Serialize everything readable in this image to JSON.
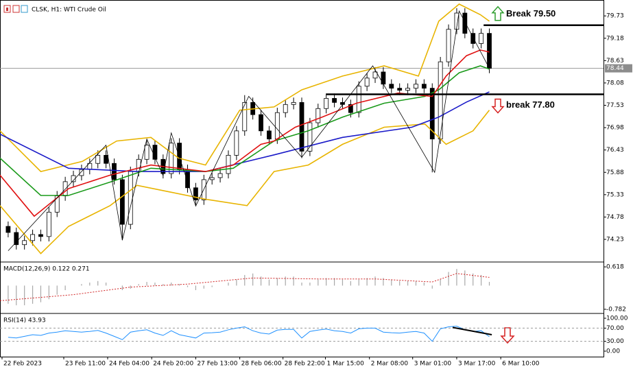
{
  "chart_data": [
    {
      "type": "candlestick",
      "title": "CLSK, H1:  WTI Crude Oil",
      "open": [
        74.55,
        74.4,
        74.1,
        74.2,
        74.35,
        74.3,
        74.9,
        75.3,
        75.65,
        75.8,
        75.95,
        76.1,
        76.3,
        76.1,
        75.7,
        74.6,
        75.9,
        76.2,
        76.55,
        76.2,
        75.85,
        76.6,
        75.95,
        75.5,
        75.2,
        75.7,
        75.75,
        75.85,
        76.3,
        76.9,
        77.6,
        77.3,
        76.9,
        76.7,
        77.35,
        77.55,
        77.6,
        76.4,
        77.1,
        77.45,
        77.7,
        77.6,
        77.55,
        77.35,
        78.0,
        78.2,
        78.35,
        78.05,
        77.95,
        77.9,
        77.95,
        78.05,
        77.95,
        76.7,
        78.6,
        79.4,
        79.8,
        79.3,
        79.05,
        79.3
      ],
      "high": [
        74.67,
        74.52,
        74.32,
        74.47,
        74.47,
        75.02,
        75.42,
        75.77,
        75.92,
        76.07,
        76.22,
        76.42,
        76.42,
        76.22,
        75.82,
        76.02,
        76.32,
        76.67,
        76.67,
        76.32,
        76.72,
        76.72,
        76.07,
        75.62,
        75.82,
        75.87,
        75.97,
        76.42,
        77.02,
        77.78,
        77.72,
        77.42,
        77.02,
        77.47,
        77.67,
        77.72,
        77.72,
        77.22,
        77.57,
        77.82,
        77.82,
        77.72,
        77.67,
        78.12,
        78.32,
        78.47,
        78.47,
        78.17,
        78.07,
        78.07,
        78.17,
        78.17,
        78.07,
        78.72,
        79.52,
        79.92,
        79.92,
        79.42,
        79.42,
        79.42
      ],
      "low": [
        74.28,
        73.98,
        73.98,
        74.08,
        74.18,
        74.18,
        74.78,
        75.18,
        75.53,
        75.68,
        75.83,
        75.98,
        75.98,
        75.58,
        74.21,
        74.48,
        75.78,
        76.08,
        76.08,
        75.73,
        75.73,
        75.83,
        75.38,
        75.08,
        75.08,
        75.58,
        75.63,
        75.73,
        76.18,
        76.78,
        77.18,
        76.78,
        76.58,
        76.58,
        77.23,
        77.43,
        76.23,
        76.28,
        76.98,
        77.33,
        77.48,
        77.43,
        77.23,
        77.23,
        77.88,
        78.08,
        77.93,
        77.83,
        77.78,
        77.78,
        77.83,
        77.83,
        75.88,
        76.58,
        78.48,
        79.28,
        79.18,
        78.93,
        78.93,
        78.32
      ],
      "close": [
        74.4,
        74.1,
        74.2,
        74.35,
        74.3,
        74.9,
        75.3,
        75.65,
        75.8,
        75.95,
        76.1,
        76.3,
        76.1,
        75.7,
        74.6,
        75.9,
        76.2,
        76.55,
        76.2,
        75.85,
        76.6,
        75.95,
        75.5,
        75.2,
        75.7,
        75.75,
        75.85,
        76.3,
        76.9,
        77.6,
        77.3,
        76.9,
        76.7,
        77.35,
        77.55,
        77.6,
        76.4,
        77.1,
        77.45,
        77.7,
        77.6,
        77.55,
        77.35,
        78.0,
        78.2,
        78.35,
        78.05,
        77.95,
        77.9,
        77.95,
        78.05,
        77.95,
        76.7,
        78.6,
        79.4,
        79.8,
        79.3,
        79.05,
        79.3,
        78.44
      ],
      "up_color": "#ffffff",
      "down_color": "#000000",
      "xlim": [
        -1,
        73
      ],
      "xticks": [
        {
          "value": -0.75,
          "label": "22 Feb 2023"
        },
        {
          "value": 6.82,
          "label": "23 Feb 11:00"
        },
        {
          "value": 12.2,
          "label": "24 Feb 04:00"
        },
        {
          "value": 17.6,
          "label": "24 Feb 20:00"
        },
        {
          "value": 23,
          "label": "27 Feb 13:00"
        },
        {
          "value": 28.4,
          "label": "28 Feb 06:00"
        },
        {
          "value": 33.7,
          "label": "28 Feb 22:00"
        },
        {
          "value": 38.9,
          "label": "1 Mar 15:00"
        },
        {
          "value": 44.3,
          "label": "2 Mar 08:00"
        },
        {
          "value": 49.6,
          "label": "3 Mar 01:00"
        },
        {
          "value": 55,
          "label": "3 Mar 17:00"
        },
        {
          "value": 60.4,
          "label": "6 Mar 10:00"
        }
      ],
      "ylim": [
        73.69,
        80.02
      ],
      "yticks": [
        79.73,
        79.18,
        78.63,
        78.08,
        77.53,
        76.98,
        76.43,
        75.88,
        75.33,
        74.78,
        74.23
      ],
      "last_price": 78.44,
      "lines": [
        {
          "color": "#e8b400",
          "x": [
            -1,
            4,
            9.1,
            13.3,
            17.5,
            20.9,
            24.2,
            28.4,
            32.6,
            36,
            41,
            46.1,
            50.3,
            52.8,
            55.3,
            57.9,
            59
          ],
          "values": [
            76.9,
            75.9,
            76.15,
            76.65,
            76.74,
            76.23,
            76.06,
            77.41,
            77.49,
            77.91,
            78.25,
            78.5,
            78.25,
            79.6,
            80.02,
            79.76,
            79.6
          ]
        },
        {
          "color": "#e8b400",
          "x": [
            -1,
            4,
            7.4,
            12.5,
            15.8,
            20,
            24.2,
            29.3,
            32.6,
            36.8,
            41,
            46.1,
            51.1,
            53.7,
            57,
            59
          ],
          "values": [
            75.06,
            73.88,
            74.55,
            75.06,
            75.56,
            75.39,
            75.22,
            75.06,
            75.9,
            76.06,
            76.57,
            76.99,
            77.07,
            76.57,
            76.9,
            77.41
          ]
        },
        {
          "color": "#1a1ac8",
          "x": [
            -1,
            7.4,
            15.8,
            24.2,
            32.6,
            41,
            49.5,
            52.8,
            56.2,
            59
          ],
          "values": [
            76.82,
            75.98,
            75.9,
            75.9,
            76.31,
            76.74,
            76.99,
            77.24,
            77.61,
            77.86
          ]
        },
        {
          "color": "#1a9a1a",
          "x": [
            -1,
            4,
            7.4,
            12.5,
            17.5,
            24.2,
            27.6,
            32.6,
            36.8,
            41,
            46.1,
            51.1,
            52.8,
            55.3,
            57.9,
            59
          ],
          "values": [
            76.23,
            75.31,
            75.31,
            75.64,
            75.98,
            75.9,
            75.98,
            76.65,
            76.9,
            77.24,
            77.58,
            77.75,
            77.91,
            78.33,
            78.5,
            78.42
          ]
        },
        {
          "color": "#e01010",
          "x": [
            -1,
            3.2,
            7.4,
            12.5,
            17.5,
            24.2,
            27.6,
            31,
            32.6,
            35.2,
            38.5,
            42.7,
            47.8,
            52,
            53.7,
            56.2,
            57.9,
            59
          ],
          "values": [
            75.81,
            74.8,
            75.48,
            75.81,
            76.06,
            75.9,
            76.06,
            76.57,
            76.65,
            76.99,
            77.24,
            77.58,
            77.83,
            77.75,
            78.25,
            78.75,
            78.89,
            78.84
          ]
        },
        {
          "color": "#000000",
          "x": [
            0,
            12,
            14,
            17,
            19,
            20,
            23,
            29.5,
            36,
            44.7,
            52.3,
            55.3,
            59
          ],
          "values": [
            73.95,
            76.55,
            74.21,
            76.7,
            75.8,
            76.85,
            75.05,
            77.75,
            76.25,
            78.5,
            75.88,
            79.85,
            78.44
          ]
        }
      ],
      "levels": [
        {
          "value": 79.5,
          "x_start": 58.3,
          "label": "Break 79.50",
          "arrow": "up",
          "arrow_color": "#2e9e2e"
        },
        {
          "value": 77.8,
          "x_start": 39,
          "label": "break 77.80",
          "arrow": "down",
          "arrow_color": "#d62020"
        }
      ]
    },
    {
      "type": "bar",
      "title": "MACD(12,26,9) 0.122 0.271",
      "values": [
        -0.6,
        -0.65,
        -0.65,
        -0.6,
        -0.55,
        -0.45,
        -0.3,
        -0.15,
        0,
        0.05,
        0.1,
        0.15,
        0.1,
        0,
        -0.15,
        -0.1,
        0.05,
        0.12,
        0.1,
        0.05,
        0.1,
        0.05,
        -0.05,
        -0.15,
        -0.1,
        -0.05,
        0,
        0.1,
        0.2,
        0.35,
        0.4,
        0.3,
        0.2,
        0.25,
        0.3,
        0.3,
        0.1,
        0.1,
        0.2,
        0.25,
        0.25,
        0.2,
        0.15,
        0.2,
        0.25,
        0.3,
        0.25,
        0.2,
        0.15,
        0.15,
        0.15,
        0.1,
        -0.1,
        0.2,
        0.45,
        0.55,
        0.5,
        0.4,
        0.35,
        0.122
      ],
      "color": "#a8a8a8",
      "signal": {
        "color": "#d02020",
        "x": [
          -1,
          8,
          15,
          22,
          30,
          38,
          45,
          52,
          55,
          59
        ],
        "values": [
          -0.5,
          -0.3,
          -0.05,
          0.05,
          0.25,
          0.22,
          0.22,
          0.12,
          0.4,
          0.271
        ]
      },
      "ylim": [
        -0.897,
        0.756
      ],
      "yticks": [
        0.618,
        -0.782
      ]
    },
    {
      "type": "line",
      "title": "RSI(14) 43.93",
      "values": [
        42,
        40,
        45,
        50,
        48,
        55,
        58,
        62,
        60,
        58,
        60,
        63,
        55,
        45,
        35,
        58,
        62,
        65,
        55,
        48,
        62,
        50,
        45,
        40,
        55,
        56,
        58,
        65,
        70,
        74,
        62,
        55,
        52,
        64,
        66,
        66,
        40,
        60,
        64,
        67,
        62,
        60,
        55,
        68,
        70,
        70,
        58,
        56,
        55,
        58,
        60,
        55,
        30,
        68,
        74,
        76,
        65,
        60,
        62,
        43.93
      ],
      "color": "#1e90ff",
      "trendline": {
        "color": "#000000",
        "x": [
          54.5,
          59.3
        ],
        "values": [
          72,
          50
        ]
      },
      "ylim": [
        -16.7,
        112.5
      ],
      "yticks": [
        {
          "value": 100,
          "label": "100.00"
        },
        {
          "value": 70,
          "label": "70.00"
        },
        {
          "value": 30,
          "label": "30.00"
        },
        {
          "value": 0,
          "label": "0.00"
        }
      ]
    }
  ]
}
